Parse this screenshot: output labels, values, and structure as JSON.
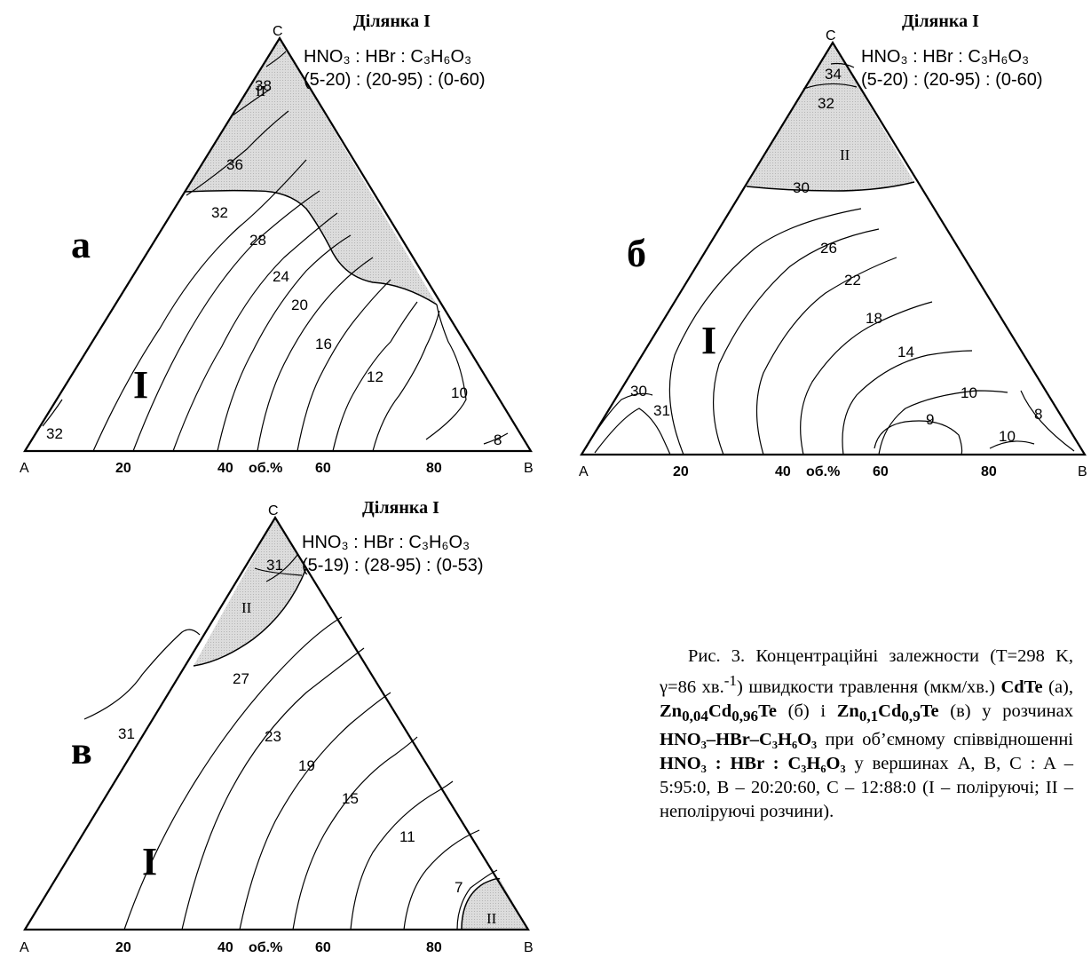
{
  "diagrams": {
    "a": {
      "region_title": "Ділянка I",
      "ratio_header": "HNO₃ :   HBr  : C₃H₆O₃",
      "ratio_values": "(5-20) : (20-95) : (0-60)",
      "panel_letter": "а",
      "vertex_a": "A",
      "vertex_b": "B",
      "vertex_c": "C",
      "axis_ticks": [
        "20",
        "40",
        "об.%",
        "60",
        "80"
      ],
      "region_one": "I",
      "region_two": "II",
      "contour_labels": [
        "38",
        "36",
        "32",
        "28",
        "24",
        "20",
        "16",
        "12",
        "10",
        "8",
        "32"
      ]
    },
    "b": {
      "region_title": "Ділянка I",
      "ratio_header": "HNO₃ :   HBr  : C₃H₆O₃",
      "ratio_values": "(5-20) : (20-95) : (0-60)",
      "panel_letter": "б",
      "vertex_a": "A",
      "vertex_b": "B",
      "vertex_c": "C",
      "axis_ticks": [
        "20",
        "40",
        "об.%",
        "60",
        "80"
      ],
      "region_one": "I",
      "region_two": "II",
      "contour_labels": [
        "34",
        "32",
        "30",
        "26",
        "22",
        "18",
        "14",
        "10",
        "9",
        "10",
        "8",
        "30",
        "31"
      ]
    },
    "c": {
      "region_title": "Ділянка I",
      "ratio_header": "HNO₃ :   HBr  : C₃H₆O₃",
      "ratio_values": "(5-19) : (28-95) : (0-53)",
      "panel_letter": "в",
      "vertex_a": "A",
      "vertex_b": "B",
      "vertex_c": "C",
      "axis_ticks": [
        "20",
        "40",
        "об.%",
        "60",
        "80"
      ],
      "region_one": "I",
      "region_two": "II",
      "contour_labels": [
        "31",
        "27",
        "23",
        "19",
        "15",
        "11",
        "7",
        "31"
      ]
    }
  },
  "caption": {
    "p1": "Рис. 3. Концентраційні залежности (T=298 K, γ=86 хв.",
    "sup1": "-1",
    "p2": ") швидкости травлення (мкм/хв.) ",
    "m1": "CdTe",
    "p3": " (а), ",
    "m2": "Zn",
    "m2s1": "0,04",
    "m2b": "Cd",
    "m2s2": "0,96",
    "m2c": "Te",
    "p4": " (б) і ",
    "m3": "Zn",
    "m3s1": "0,1",
    "m3b": "Cd",
    "m3s2": "0,9",
    "m3c": "Te",
    "p5": " (в) у розчинах ",
    "m4": "HNO₃–HBr–C₃H₆O₃",
    "p6": " при об’ємному співвідношенні ",
    "m5": "HNO₃ : HBr : C₃H₆O₃",
    "p7": " у вершинах A, B, C : A – 5:95:0, B – 20:20:60, C – 12:88:0 (I – поліруючі; II – неполіруючі розчини)."
  },
  "colors": {
    "shade": "#d9d9d9",
    "line": "#000000"
  }
}
